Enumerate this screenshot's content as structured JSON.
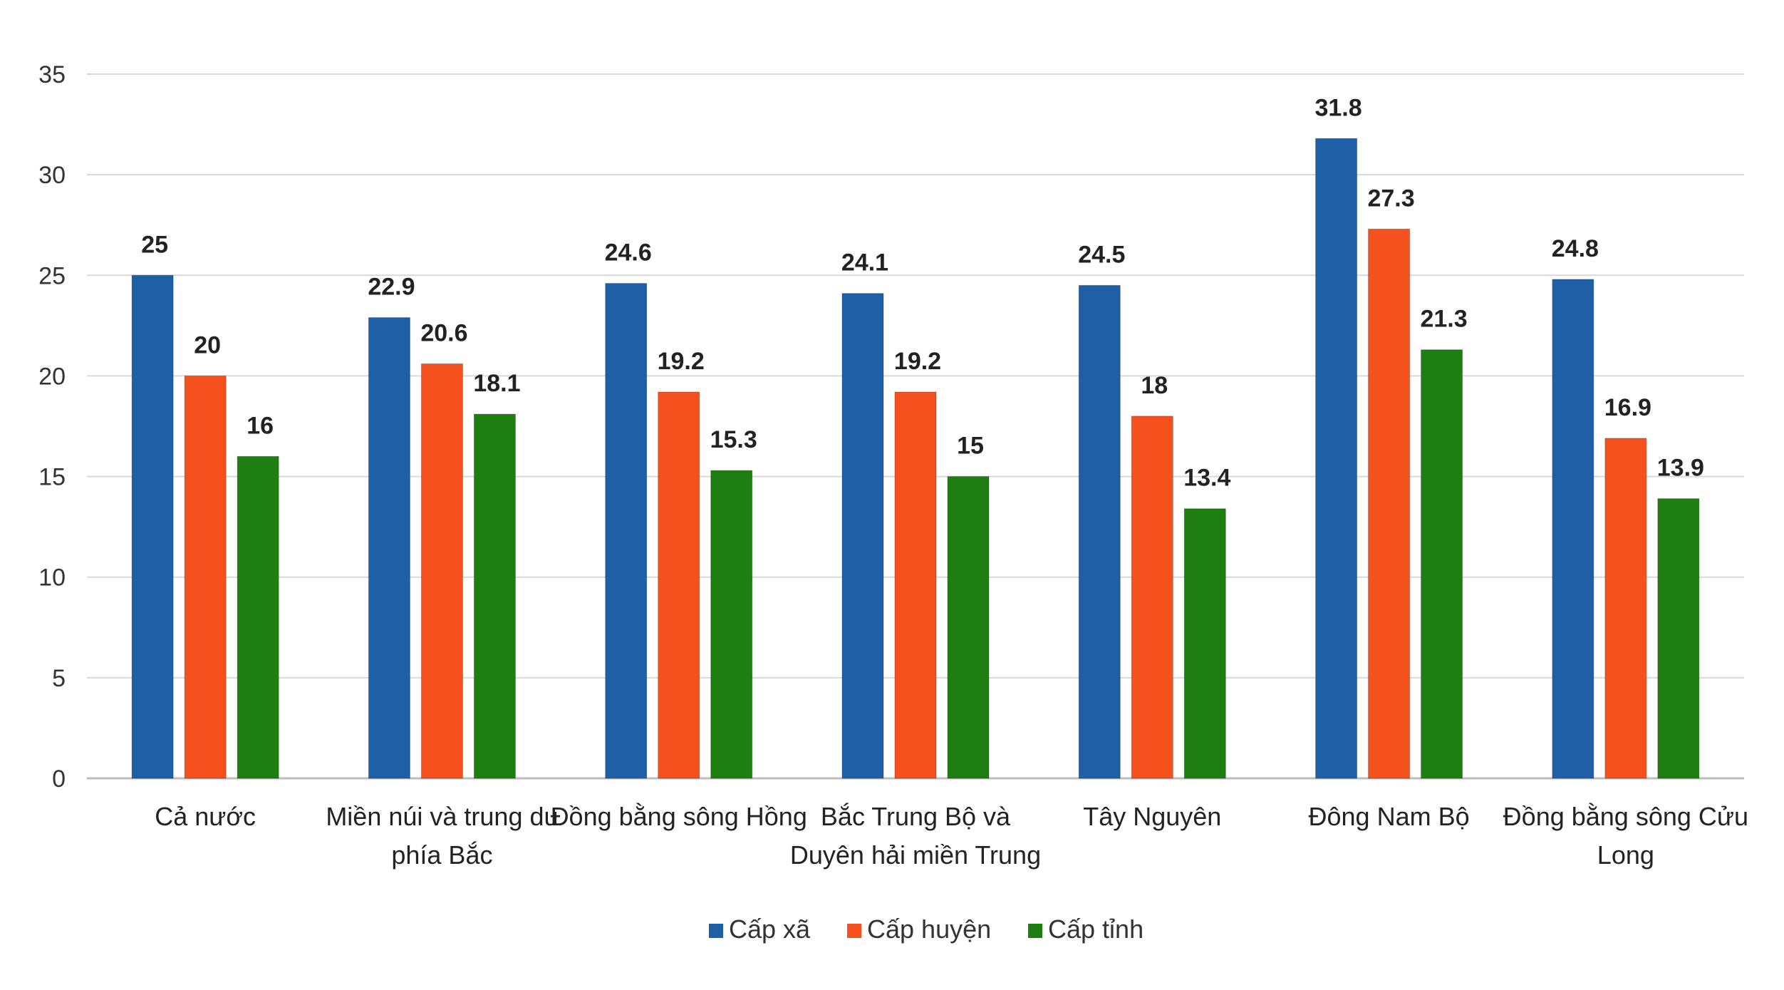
{
  "chart_data": {
    "type": "bar",
    "categories": [
      [
        "Cả nước"
      ],
      [
        "Miền núi và trung du",
        "phía Bắc"
      ],
      [
        "Đồng bằng sông Hồng"
      ],
      [
        "Bắc Trung Bộ và",
        "Duyên hải miền Trung"
      ],
      [
        "Tây Nguyên"
      ],
      [
        "Đông Nam Bộ"
      ],
      [
        "Đồng bằng sông Cửu",
        "Long"
      ]
    ],
    "series": [
      {
        "name": "Cấp xã",
        "color": "#1f5fa6",
        "values": [
          25,
          22.9,
          24.6,
          24.1,
          24.5,
          31.8,
          24.8
        ]
      },
      {
        "name": "Cấp huyện",
        "color": "#f4511e",
        "values": [
          20,
          20.6,
          19.2,
          19.2,
          18,
          27.3,
          16.9
        ]
      },
      {
        "name": "Cấp tỉnh",
        "color": "#1e7e12",
        "values": [
          16,
          18.1,
          15.3,
          15,
          13.4,
          21.3,
          13.9
        ]
      }
    ],
    "ylim": [
      0,
      35
    ],
    "yticks": [
      0,
      5,
      10,
      15,
      20,
      25,
      30,
      35
    ],
    "grid": true,
    "legend_position": "bottom"
  }
}
